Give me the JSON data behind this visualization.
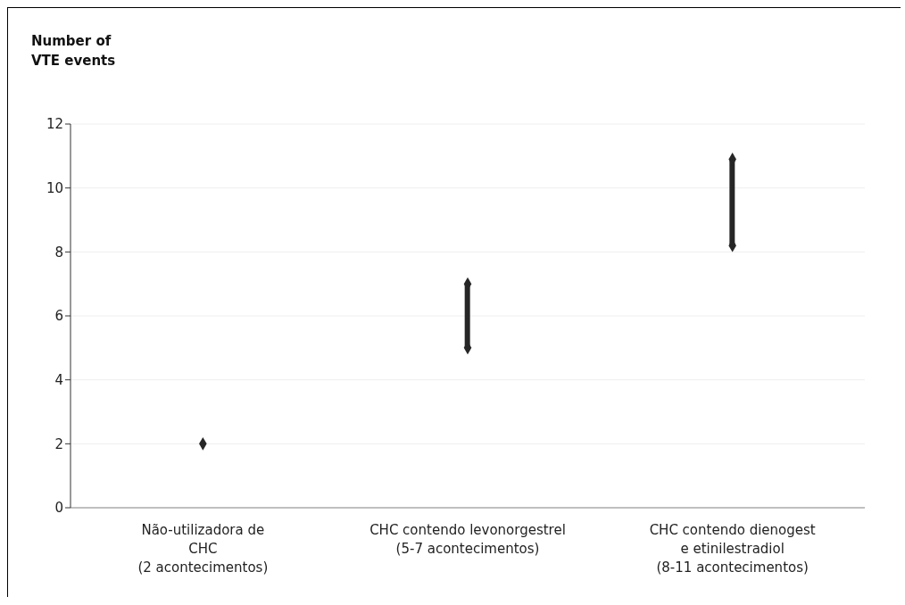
{
  "chart_data": {
    "type": "bar",
    "ylabel": "Number of VTE events",
    "categories": [
      "Não-utilizadora de\nCHC\n(2 acontecimentos)",
      "CHC contendo levonorgestrel\n(5-7 acontecimentos)",
      "CHC contendo dienogest\ne etinilestradiol\n(8-11 acontecimentos)"
    ],
    "series": [
      {
        "color": "#262626",
        "base": [
          null,
          5,
          8.2
        ],
        "values": [
          null,
          2,
          2.7
        ]
      },
      {
        "type": "scatter",
        "color": "#262626",
        "values": [
          2,
          5,
          8.2
        ]
      },
      {
        "type": "scatter",
        "color": "#262626",
        "values": [
          null,
          7,
          10.9
        ]
      }
    ],
    "marker": "diamond",
    "ylim": [
      0,
      12
    ],
    "yticks": [
      0,
      2,
      4,
      6,
      8,
      10,
      12
    ],
    "grid": "y"
  }
}
